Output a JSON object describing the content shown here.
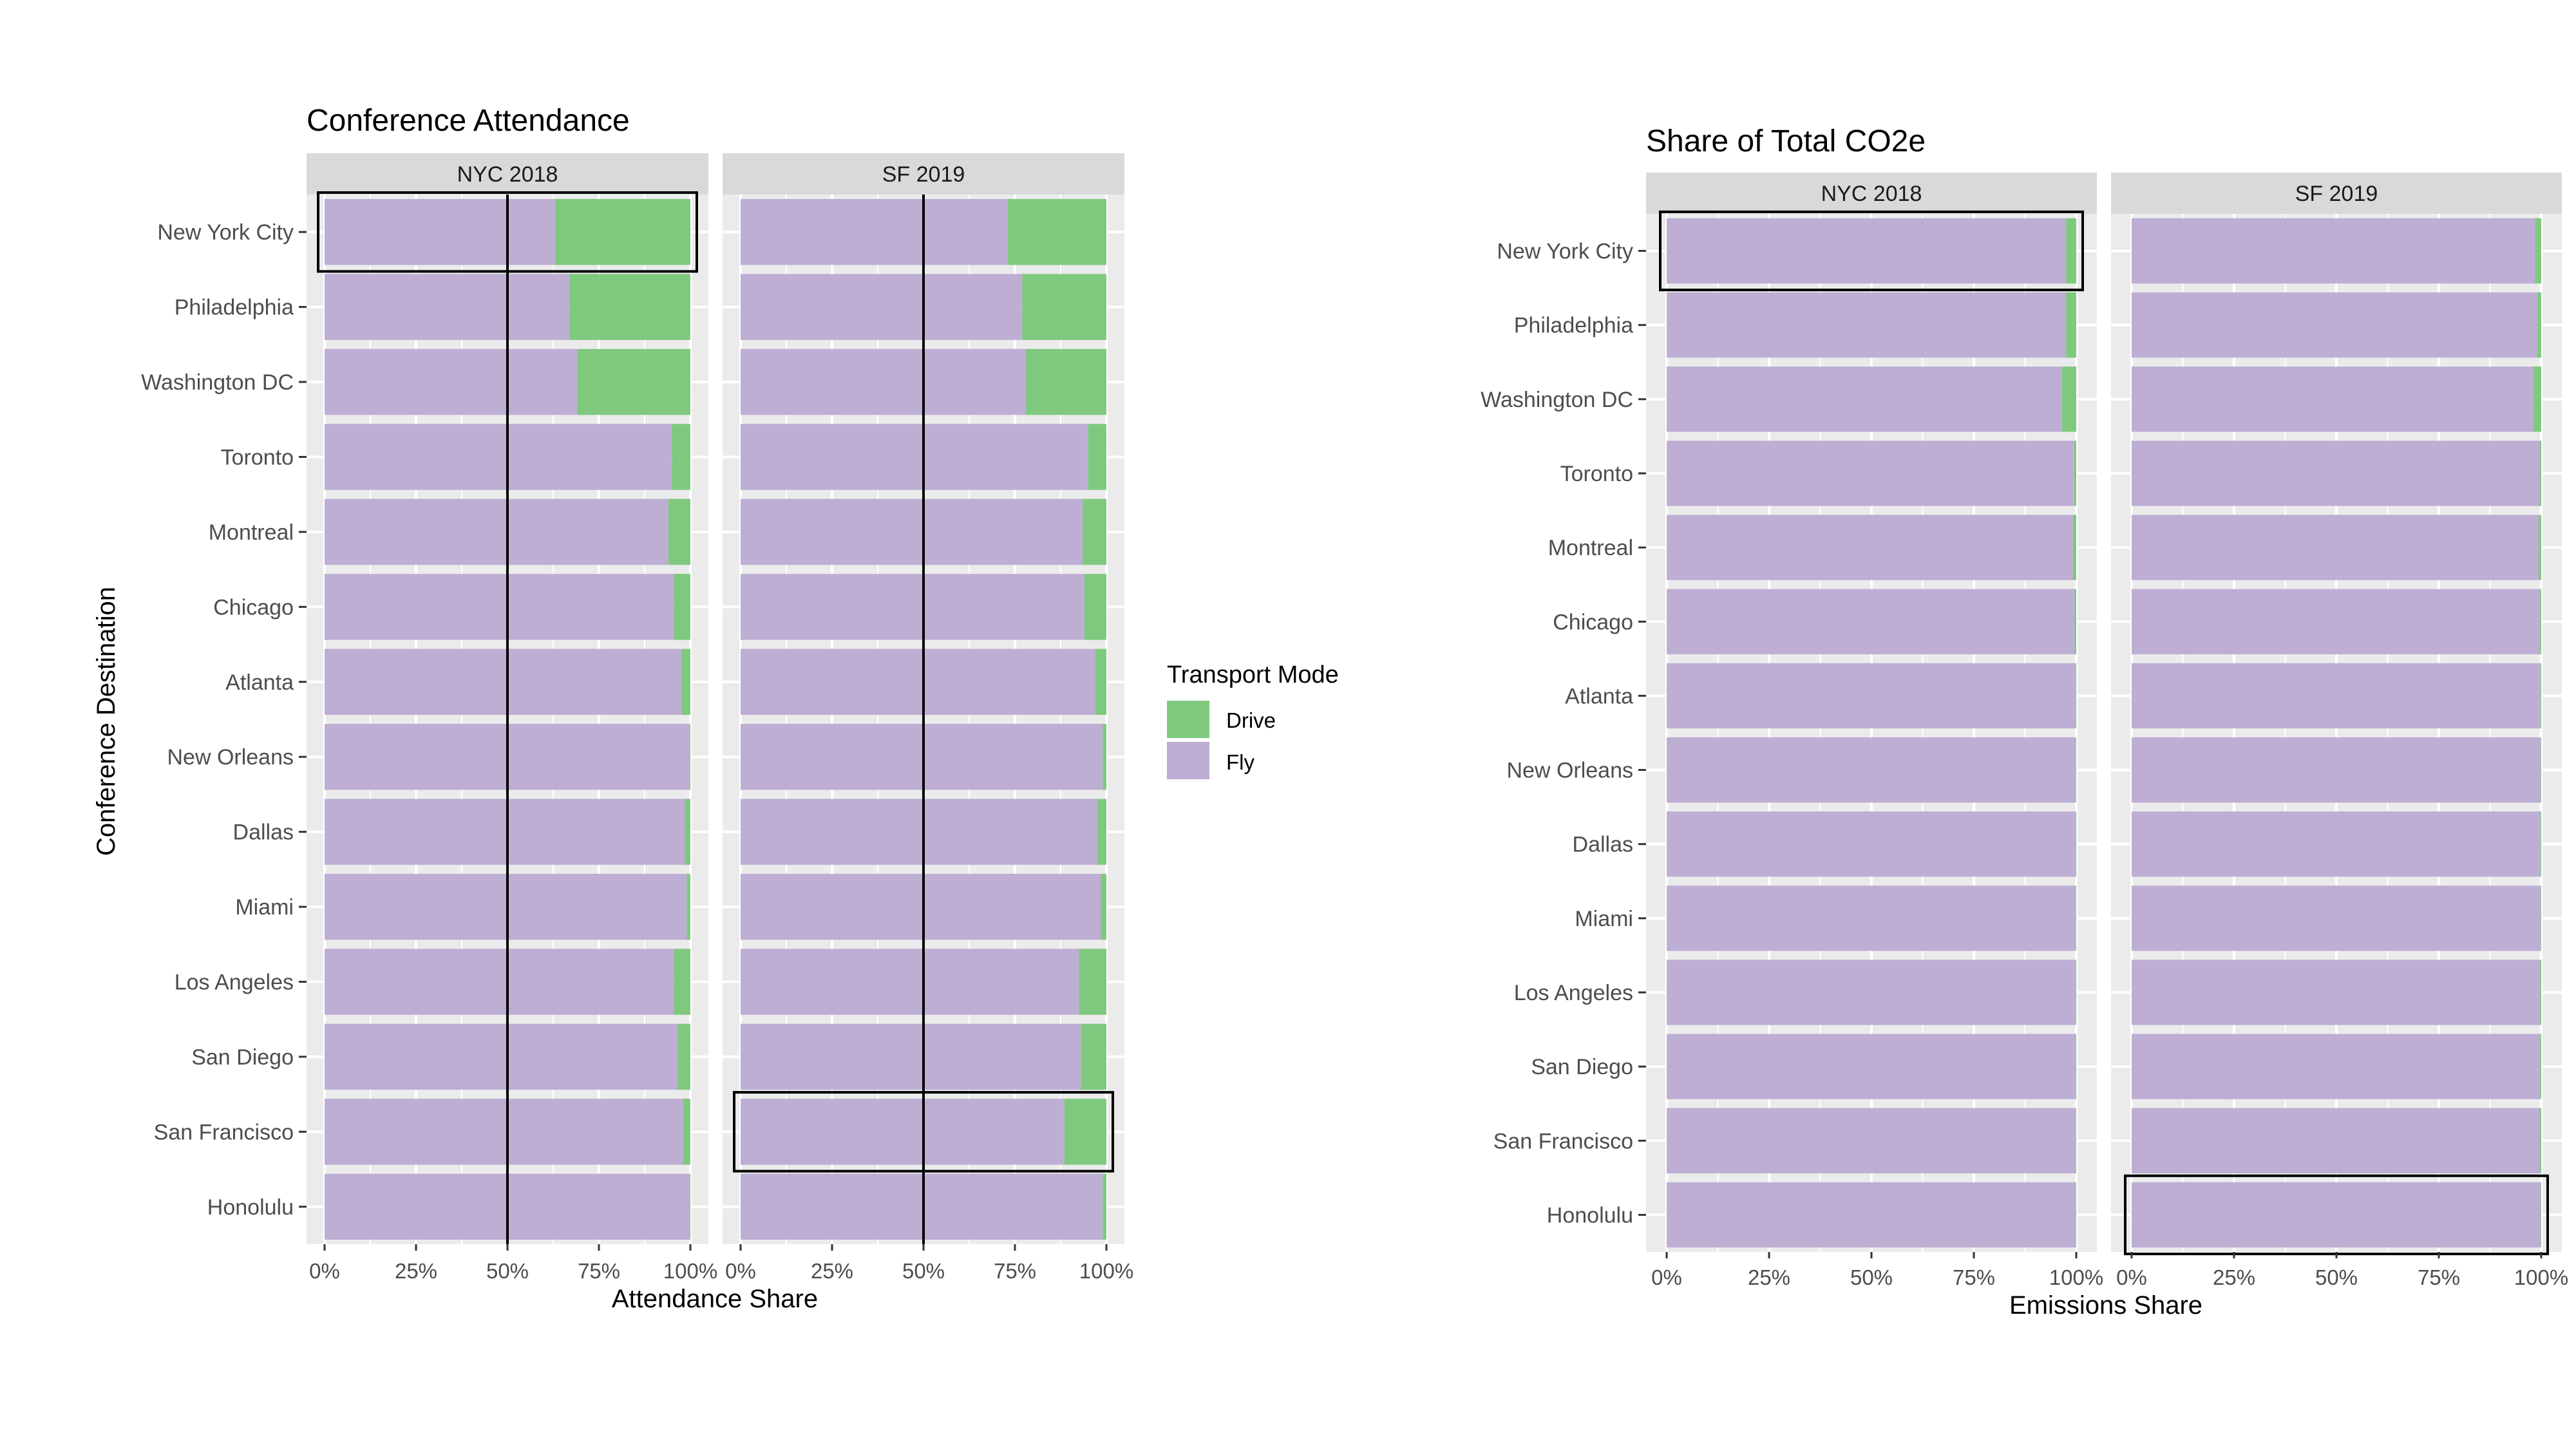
{
  "chart_data": [
    {
      "type": "bar",
      "stacked": true,
      "orientation": "horizontal",
      "title": "Conference Attendance",
      "xlabel": "Attendance Share",
      "ylabel": "Conference Destination",
      "xlim": [
        0,
        100
      ],
      "x_ticks": [
        "0%",
        "25%",
        "50%",
        "75%",
        "100%"
      ],
      "reference_line_x": 50,
      "categories": [
        "New York City",
        "Philadelphia",
        "Washington DC",
        "Toronto",
        "Montreal",
        "Chicago",
        "Atlanta",
        "New Orleans",
        "Dallas",
        "Miami",
        "Los Angeles",
        "San Diego",
        "San Francisco",
        "Honolulu"
      ],
      "facets": [
        {
          "label": "NYC 2018",
          "highlight": "New York City",
          "series": [
            {
              "name": "Fly",
              "values": [
                63,
                67,
                69,
                95,
                94,
                95.5,
                97.5,
                99.7,
                98.5,
                99,
                95.5,
                96.5,
                98,
                99.7
              ]
            },
            {
              "name": "Drive",
              "values": [
                37,
                33,
                31,
                5,
                6,
                4.5,
                2.5,
                0.3,
                1.5,
                1,
                4.5,
                3.5,
                2,
                0.3
              ]
            }
          ]
        },
        {
          "label": "SF 2019",
          "highlight": "San Francisco",
          "series": [
            {
              "name": "Fly",
              "values": [
                73,
                77,
                78,
                95,
                93.5,
                94,
                97,
                99,
                97.5,
                98.5,
                92.5,
                93,
                88.5,
                99
              ]
            },
            {
              "name": "Drive",
              "values": [
                27,
                23,
                22,
                5,
                6.5,
                6,
                3,
                1,
                2.5,
                1.5,
                7.5,
                7,
                11.5,
                1
              ]
            }
          ]
        }
      ]
    },
    {
      "type": "bar",
      "stacked": true,
      "orientation": "horizontal",
      "title": "Share of Total CO2e",
      "xlabel": "Emissions Share",
      "ylabel": "",
      "xlim": [
        0,
        100
      ],
      "x_ticks": [
        "0%",
        "25%",
        "50%",
        "75%",
        "100%"
      ],
      "categories": [
        "New York City",
        "Philadelphia",
        "Washington DC",
        "Toronto",
        "Montreal",
        "Chicago",
        "Atlanta",
        "New Orleans",
        "Dallas",
        "Miami",
        "Los Angeles",
        "San Diego",
        "San Francisco",
        "Honolulu"
      ],
      "facets": [
        {
          "label": "NYC 2018",
          "highlight": "New York City",
          "series": [
            {
              "name": "Fly",
              "values": [
                97.5,
                97.5,
                96.5,
                99.5,
                99.2,
                99.6,
                99.8,
                99.9,
                99.8,
                99.9,
                99.8,
                99.8,
                99.9,
                99.9
              ]
            },
            {
              "name": "Drive",
              "values": [
                2.5,
                2.5,
                3.5,
                0.5,
                0.8,
                0.4,
                0.2,
                0.1,
                0.2,
                0.1,
                0.2,
                0.2,
                0.1,
                0.1
              ]
            }
          ]
        },
        {
          "label": "SF 2019",
          "highlight": "Honolulu",
          "series": [
            {
              "name": "Fly",
              "values": [
                98.5,
                99,
                98,
                99.6,
                99.4,
                99.7,
                99.8,
                99.9,
                99.8,
                99.9,
                99.7,
                99.7,
                99.6,
                99.9
              ]
            },
            {
              "name": "Drive",
              "values": [
                1.5,
                1,
                2,
                0.4,
                0.6,
                0.3,
                0.2,
                0.1,
                0.2,
                0.1,
                0.3,
                0.3,
                0.4,
                0.1
              ]
            }
          ]
        }
      ]
    }
  ],
  "legend": {
    "title": "Transport Mode",
    "items": [
      {
        "name": "Drive",
        "color": "#7fc97f"
      },
      {
        "name": "Fly",
        "color": "#beaed4"
      }
    ]
  },
  "colors": {
    "Drive": "#7fc97f",
    "Fly": "#beaed4",
    "panel_background": "#ebebeb",
    "strip_background": "#d9d9d9"
  }
}
